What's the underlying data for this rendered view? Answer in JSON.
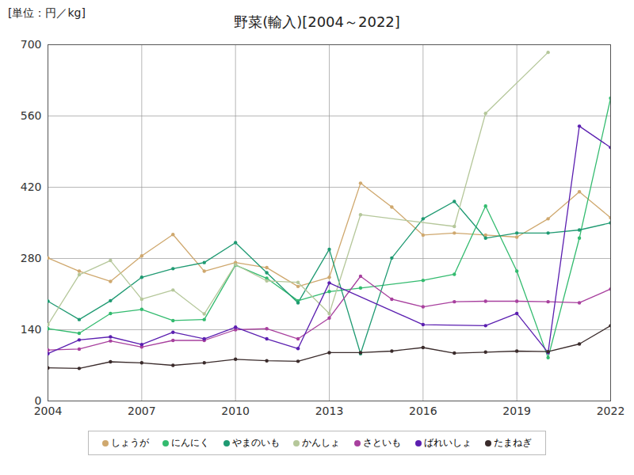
{
  "chart_data": {
    "type": "line",
    "title": "野菜(輸入)[2004～2022]",
    "y_label": "[単位：円／kg]",
    "x": [
      2004,
      2005,
      2006,
      2007,
      2008,
      2009,
      2010,
      2011,
      2012,
      2013,
      2014,
      2015,
      2016,
      2017,
      2018,
      2019,
      2020,
      2021,
      2022
    ],
    "series": [
      {
        "name": "しょうが",
        "color": "#cfa86e",
        "values": [
          281,
          255,
          235,
          285,
          327,
          255,
          272,
          262,
          225,
          243,
          428,
          381,
          326,
          330,
          326,
          322,
          358,
          411,
          360
        ]
      },
      {
        "name": "にんにく",
        "color": "#33bb6f",
        "values": [
          142,
          133,
          172,
          180,
          158,
          160,
          267,
          241,
          197,
          215,
          222,
          null,
          237,
          249,
          383,
          255,
          85,
          320,
          595
        ]
      },
      {
        "name": "やまのいも",
        "color": "#1f9a72",
        "values": [
          196,
          160,
          197,
          243,
          260,
          272,
          311,
          252,
          193,
          298,
          93,
          281,
          358,
          392,
          320,
          330,
          330,
          336,
          350
        ]
      },
      {
        "name": "かんしょ",
        "color": "#b5c79a",
        "values": [
          150,
          248,
          276,
          200,
          218,
          171,
          268,
          236,
          233,
          172,
          366,
          null,
          null,
          343,
          565,
          null,
          685,
          null,
          null
        ]
      },
      {
        "name": "さといも",
        "color": "#a8409e",
        "values": [
          100,
          102,
          118,
          106,
          119,
          119,
          140,
          142,
          122,
          163,
          245,
          200,
          185,
          195,
          196,
          196,
          195,
          193,
          220
        ]
      },
      {
        "name": "ばれいしょ",
        "color": "#5b1fb0",
        "values": [
          93,
          120,
          126,
          111,
          135,
          122,
          145,
          122,
          103,
          232,
          null,
          null,
          150,
          null,
          148,
          172,
          95,
          540,
          498
        ]
      },
      {
        "name": "たまねぎ",
        "color": "#3a2b2b",
        "values": [
          65,
          64,
          77,
          75,
          70,
          75,
          82,
          79,
          78,
          95,
          95,
          98,
          105,
          94,
          96,
          98,
          97,
          112,
          148
        ]
      }
    ],
    "xlim": [
      2004,
      2022
    ],
    "xticks": [
      2004,
      2007,
      2010,
      2013,
      2016,
      2019,
      2022
    ],
    "ylim": [
      0,
      700
    ],
    "yticks": [
      0,
      140,
      280,
      420,
      560,
      700
    ],
    "grid": true,
    "marker": "circle",
    "legend": "bottom"
  }
}
